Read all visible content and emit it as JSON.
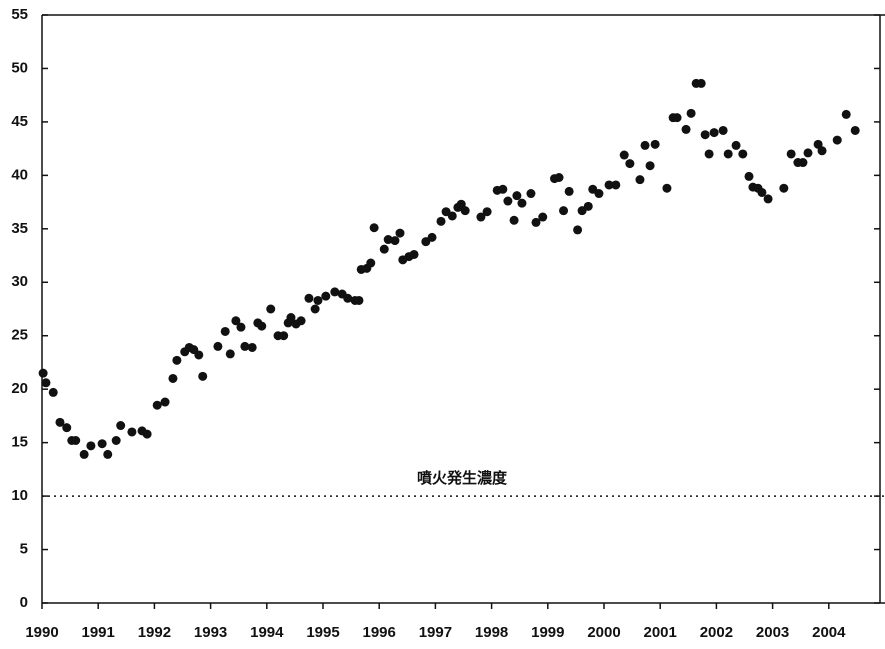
{
  "chart_data": {
    "type": "scatter",
    "x": [
      1990.02,
      1990.07,
      1990.2,
      1990.32,
      1990.44,
      1990.53,
      1990.6,
      1990.75,
      1990.87,
      1991.07,
      1991.17,
      1991.32,
      1991.4,
      1991.6,
      1991.78,
      1991.87,
      1992.05,
      1992.19,
      1992.33,
      1992.4,
      1992.54,
      1992.62,
      1992.7,
      1992.79,
      1992.86,
      1993.13,
      1993.26,
      1993.35,
      1993.45,
      1993.54,
      1993.61,
      1993.74,
      1993.84,
      1993.91,
      1994.07,
      1994.2,
      1994.3,
      1994.38,
      1994.43,
      1994.52,
      1994.61,
      1994.75,
      1994.86,
      1994.91,
      1995.05,
      1995.21,
      1995.34,
      1995.44,
      1995.57,
      1995.64,
      1995.68,
      1995.78,
      1995.85,
      1995.91,
      1996.09,
      1996.16,
      1996.28,
      1996.37,
      1996.42,
      1996.53,
      1996.62,
      1996.83,
      1996.94,
      1997.1,
      1997.19,
      1997.3,
      1997.4,
      1997.46,
      1997.53,
      1997.81,
      1997.92,
      1998.1,
      1998.2,
      1998.29,
      1998.4,
      1998.45,
      1998.54,
      1998.7,
      1998.79,
      1998.91,
      1999.12,
      1999.2,
      1999.28,
      1999.38,
      1999.53,
      1999.61,
      1999.72,
      1999.8,
      1999.91,
      2000.09,
      2000.21,
      2000.36,
      2000.46,
      2000.64,
      2000.73,
      2000.82,
      2000.91,
      2001.12,
      2001.23,
      2001.3,
      2001.46,
      2001.55,
      2001.64,
      2001.73,
      2001.8,
      2001.87,
      2001.96,
      2002.12,
      2002.21,
      2002.35,
      2002.47,
      2002.58,
      2002.65,
      2002.74,
      2002.81,
      2002.92,
      2003.2,
      2003.33,
      2003.45,
      2003.54,
      2003.63,
      2003.81,
      2003.88,
      2004.15,
      2004.31,
      2004.47
    ],
    "values": [
      21.5,
      20.6,
      19.7,
      16.9,
      16.4,
      15.2,
      15.2,
      13.9,
      14.7,
      14.9,
      13.9,
      15.2,
      16.6,
      16.0,
      16.1,
      15.8,
      18.5,
      18.8,
      21.0,
      22.7,
      23.5,
      23.9,
      23.7,
      23.2,
      21.2,
      24.0,
      25.4,
      23.3,
      26.4,
      25.8,
      24.0,
      23.9,
      26.2,
      25.9,
      27.5,
      25.0,
      25.0,
      26.2,
      26.7,
      26.1,
      26.4,
      28.5,
      27.5,
      28.3,
      28.7,
      29.1,
      28.9,
      28.5,
      28.3,
      28.3,
      31.2,
      31.3,
      31.8,
      35.1,
      33.1,
      34.0,
      33.9,
      34.6,
      32.1,
      32.4,
      32.6,
      33.8,
      34.2,
      35.7,
      36.6,
      36.2,
      37.0,
      37.3,
      36.7,
      36.1,
      36.6,
      38.6,
      38.7,
      37.6,
      35.8,
      38.1,
      37.4,
      38.3,
      35.6,
      36.1,
      39.7,
      39.8,
      36.7,
      38.5,
      34.9,
      36.7,
      37.1,
      38.7,
      38.3,
      39.1,
      39.1,
      41.9,
      41.1,
      39.6,
      42.8,
      40.9,
      42.9,
      38.8,
      45.4,
      45.4,
      44.3,
      45.8,
      48.6,
      48.6,
      43.8,
      42.0,
      44.0,
      44.2,
      42.0,
      42.8,
      42.0,
      39.9,
      38.9,
      38.8,
      38.4,
      37.8,
      38.8,
      42.0,
      41.2,
      41.2,
      42.1,
      42.9,
      42.3,
      43.3,
      45.7,
      44.2
    ],
    "color": "#111111",
    "xlim": [
      1990,
      2005
    ],
    "xticks": [
      1990,
      1991,
      1992,
      1993,
      1994,
      1995,
      1996,
      1997,
      1998,
      1999,
      2000,
      2001,
      2002,
      2003,
      2004
    ],
    "ylim": [
      0,
      55
    ],
    "yticks": [
      0,
      5,
      10,
      15,
      20,
      25,
      30,
      35,
      40,
      45,
      50,
      55
    ],
    "threshold": {
      "value": 10,
      "label": "噴火発生濃度"
    }
  }
}
